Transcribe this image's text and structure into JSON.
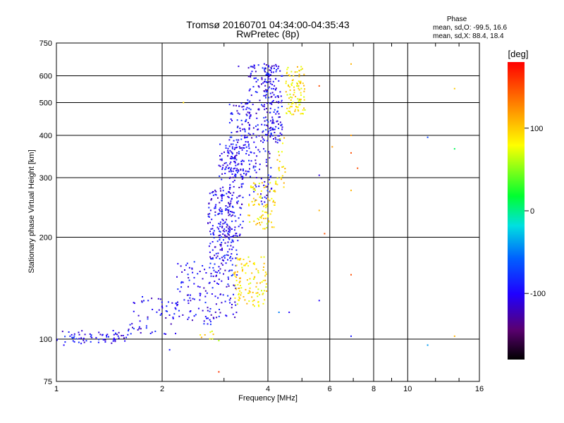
{
  "chart_data": {
    "type": "scatter",
    "title": "Tromsø 20160701 04:34:00-04:35:43",
    "subtitle": "RwPretec (8p)",
    "xlabel": "Frequency [MHz]",
    "ylabel": "Stationary phase Virtual Height [km]",
    "x_scale": "log",
    "y_scale": "log",
    "xlim": [
      1,
      16
    ],
    "ylim": [
      75,
      750
    ],
    "grid": true,
    "x_ticks": [
      1,
      2,
      4,
      6,
      8,
      10,
      16
    ],
    "x_tick_labels": [
      "1",
      "2",
      "4",
      "6",
      "8",
      "10",
      "16"
    ],
    "y_ticks": [
      75,
      100,
      200,
      300,
      400,
      500,
      600,
      750
    ],
    "y_tick_labels": [
      "75",
      "100",
      "200",
      "300",
      "400",
      "500",
      "600",
      "750"
    ],
    "phase_stats": {
      "title": "Phase",
      "o_line": "mean, sd,O: -99.5, 16.6",
      "x_line": "mean, sd,X:  88.4, 18.4"
    },
    "colorbar": {
      "label": "[deg]",
      "range": [
        -180,
        180
      ],
      "ticks": [
        100,
        0,
        -100
      ],
      "tick_labels": [
        "100",
        "0",
        "-100"
      ],
      "colormap": "rainbow (black-purple-blue-cyan-green-yellow-red)"
    },
    "series": [
      {
        "mode": "O",
        "color_phase": -100,
        "clusters": [
          {
            "f": [
              1.0,
              1.6
            ],
            "h": [
              97,
              106
            ],
            "n": 70
          },
          {
            "f": [
              1.6,
              2.2
            ],
            "h": [
              103,
              135
            ],
            "n": 60
          },
          {
            "f": [
              2.2,
              2.8
            ],
            "h": [
              110,
              170
            ],
            "n": 90
          },
          {
            "f": [
              2.8,
              3.3
            ],
            "h": [
              115,
              200
            ],
            "n": 90
          },
          {
            "f": [
              2.7,
              3.2
            ],
            "h": [
              170,
              280
            ],
            "n": 140
          },
          {
            "f": [
              2.9,
              3.4
            ],
            "h": [
              200,
              380
            ],
            "n": 160
          },
          {
            "f": [
              3.1,
              3.6
            ],
            "h": [
              300,
              500
            ],
            "n": 130
          },
          {
            "f": [
              3.5,
              4.1
            ],
            "h": [
              250,
              660
            ],
            "n": 170
          },
          {
            "f": [
              3.9,
              4.4
            ],
            "h": [
              380,
              650
            ],
            "n": 130
          }
        ]
      },
      {
        "mode": "X",
        "color_phase": 90,
        "clusters": [
          {
            "f": [
              3.2,
              4.0
            ],
            "h": [
              125,
              175
            ],
            "n": 110
          },
          {
            "f": [
              3.5,
              4.2
            ],
            "h": [
              210,
              290
            ],
            "n": 80
          },
          {
            "f": [
              4.2,
              4.5
            ],
            "h": [
              280,
              400
            ],
            "n": 25
          },
          {
            "f": [
              4.5,
              5.1
            ],
            "h": [
              460,
              640
            ],
            "n": 100
          },
          {
            "f": [
              2.5,
              2.8
            ],
            "h": [
              100,
              106
            ],
            "n": 8
          }
        ]
      },
      {
        "mode": "scattered",
        "points": [
          {
            "f": 2.3,
            "h": 500,
            "p": 95
          },
          {
            "f": 6.9,
            "h": 650,
            "p": 110
          },
          {
            "f": 6.9,
            "h": 400,
            "p": 120
          },
          {
            "f": 6.9,
            "h": 275,
            "p": 110
          },
          {
            "f": 6.9,
            "h": 355,
            "p": 150
          },
          {
            "f": 7.2,
            "h": 320,
            "p": 150
          },
          {
            "f": 6.9,
            "h": 155,
            "p": 150
          },
          {
            "f": 6.9,
            "h": 102,
            "p": -90
          },
          {
            "f": 5.6,
            "h": 560,
            "p": 150
          },
          {
            "f": 5.6,
            "h": 240,
            "p": 110
          },
          {
            "f": 5.6,
            "h": 130,
            "p": -100
          },
          {
            "f": 5.6,
            "h": 305,
            "p": -110
          },
          {
            "f": 6.1,
            "h": 370,
            "p": 120
          },
          {
            "f": 11.4,
            "h": 395,
            "p": -70
          },
          {
            "f": 11.4,
            "h": 96,
            "p": -40
          },
          {
            "f": 13.6,
            "h": 550,
            "p": 100
          },
          {
            "f": 13.6,
            "h": 365,
            "p": 10
          },
          {
            "f": 13.6,
            "h": 102,
            "p": 110
          },
          {
            "f": 3.3,
            "h": 640,
            "p": -110
          },
          {
            "f": 2.9,
            "h": 80,
            "p": 160
          },
          {
            "f": 2.9,
            "h": 99,
            "p": 60
          },
          {
            "f": 2.1,
            "h": 93,
            "p": -90
          },
          {
            "f": 1.05,
            "h": 96,
            "p": -100
          },
          {
            "f": 4.3,
            "h": 120,
            "p": -50
          },
          {
            "f": 4.6,
            "h": 120,
            "p": -100
          },
          {
            "f": 5.8,
            "h": 205,
            "p": 150
          }
        ]
      }
    ]
  }
}
